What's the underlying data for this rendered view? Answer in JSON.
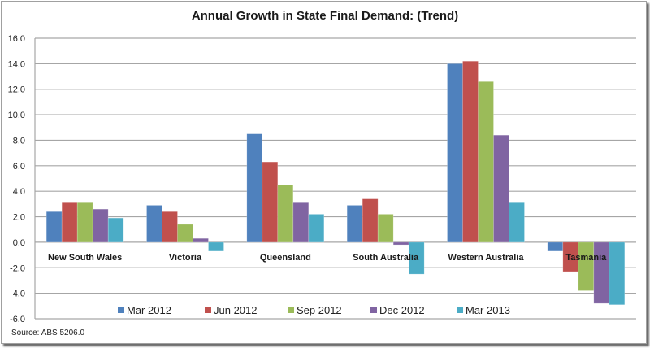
{
  "chart_data": {
    "type": "bar",
    "title": "Annual Growth in State Final Demand: (Trend)",
    "xlabel": "",
    "ylabel": "",
    "ylim": [
      -6,
      16
    ],
    "yticks": [
      "16.0",
      "14.0",
      "12.0",
      "10.0",
      "8.0",
      "6.0",
      "4.0",
      "2.0",
      "0.0",
      "-2.0",
      "-4.0",
      "-6.0"
    ],
    "grid": true,
    "legend_position": "bottom",
    "categories": [
      "New South Wales",
      "Victoria",
      "Queensland",
      "South Australia",
      "Western Australia",
      "Tasmania"
    ],
    "series": [
      {
        "name": "Mar 2012",
        "color": "#4F81BD",
        "values": [
          2.4,
          2.9,
          8.5,
          2.9,
          14.0,
          -0.7
        ]
      },
      {
        "name": "Jun 2012",
        "color": "#C0504D",
        "values": [
          3.1,
          2.4,
          6.3,
          3.4,
          14.2,
          -2.3
        ]
      },
      {
        "name": "Sep 2012",
        "color": "#9BBB59",
        "values": [
          3.1,
          1.4,
          4.5,
          2.2,
          12.6,
          -3.8
        ]
      },
      {
        "name": "Dec 2012",
        "color": "#8064A2",
        "values": [
          2.6,
          0.3,
          3.1,
          -0.2,
          8.4,
          -4.8
        ]
      },
      {
        "name": "Mar 2013",
        "color": "#4BACC6",
        "values": [
          1.9,
          -0.7,
          2.2,
          -2.5,
          3.1,
          -4.9
        ]
      }
    ],
    "source": "Source: ABS 5206.0"
  }
}
